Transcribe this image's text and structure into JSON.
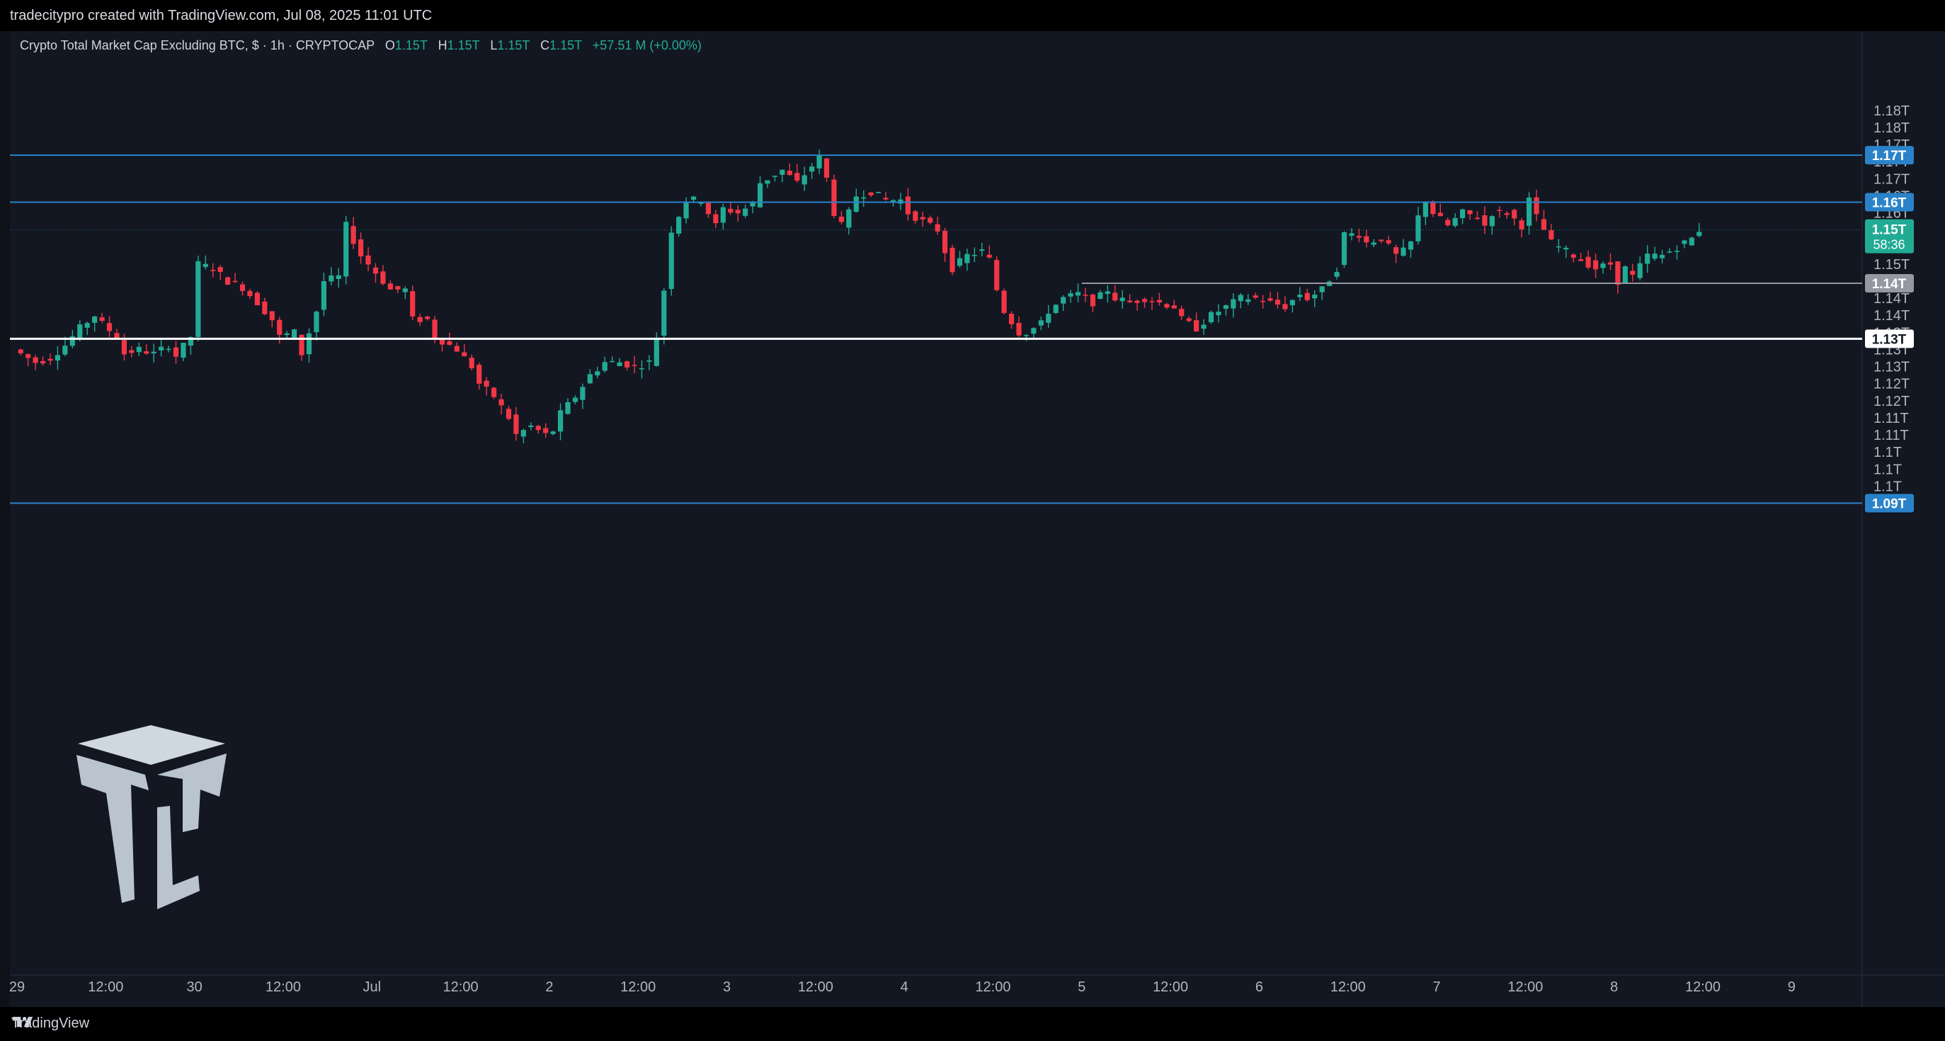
{
  "header": {
    "caption": "tradecitypro created with TradingView.com, Jul 08, 2025 11:01 UTC"
  },
  "legend": {
    "symbol": "Crypto Total Market Cap Excluding BTC, $ · 1h · CRYPTOCAP",
    "o_label": "O",
    "o": "1.15T",
    "h_label": "H",
    "h": "1.15T",
    "l_label": "L",
    "l": "1.15T",
    "c_label": "C",
    "c": "1.15T",
    "change": "+57.51 M (+0.00%)"
  },
  "footer": {
    "brand": "TradingView"
  },
  "colors": {
    "up": "#22ab94",
    "down": "#f23645",
    "level": "#2962ff",
    "bg": "#131722"
  },
  "chart_data": {
    "type": "candlestick",
    "interval": "1h",
    "y_ticks": [
      "1.18T",
      "1.18T",
      "1.17T",
      "1.17T",
      "1.17T",
      "1.16T",
      "1.16T",
      "1.16T",
      "1.15T",
      "1.15T",
      "1.14T",
      "1.14T",
      "1.14T",
      "1.13T",
      "1.13T",
      "1.13T",
      "1.12T",
      "1.12T",
      "1.11T",
      "1.11T",
      "1.1T",
      "1.1T",
      "1.1T"
    ],
    "y_tick_values": [
      1.18,
      1.176,
      1.172,
      1.168,
      1.164,
      1.16,
      1.156,
      1.152,
      1.148,
      1.144,
      1.14,
      1.136,
      1.132,
      1.128,
      1.124,
      1.12,
      1.116,
      1.112,
      1.108,
      1.104,
      1.1,
      1.096,
      1.092
    ],
    "ylim": [
      1.086,
      1.182
    ],
    "x_ticks": [
      "29",
      "12:00",
      "30",
      "12:00",
      "Jul",
      "12:00",
      "2",
      "12:00",
      "3",
      "12:00",
      "4",
      "12:00",
      "5",
      "12:00",
      "6",
      "12:00",
      "7",
      "12:00",
      "8",
      "12:00",
      "9"
    ],
    "x_tick_hours": [
      0,
      12,
      24,
      36,
      48,
      60,
      72,
      84,
      96,
      108,
      120,
      132,
      144,
      156,
      168,
      180,
      192,
      204,
      216,
      228,
      240
    ],
    "horizontal_levels": [
      {
        "value": 1.1695,
        "label": "1.17T",
        "style": "blue"
      },
      {
        "value": 1.1585,
        "label": "1.16T",
        "style": "blue"
      },
      {
        "value": 1.1395,
        "label": "1.14T",
        "style": "gray",
        "from_hour": 144
      },
      {
        "value": 1.1265,
        "label": "1.13T",
        "style": "white"
      },
      {
        "value": 1.088,
        "label": "1.09T",
        "style": "blue"
      }
    ],
    "last_price": {
      "value": 1.152,
      "label": "1.15T",
      "countdown": "58:36"
    },
    "anchors": [
      [
        0,
        1.124
      ],
      [
        3,
        1.121
      ],
      [
        5,
        1.122
      ],
      [
        7,
        1.125
      ],
      [
        9,
        1.129
      ],
      [
        11,
        1.132
      ],
      [
        12,
        1.13
      ],
      [
        14,
        1.127
      ],
      [
        15,
        1.123
      ],
      [
        17,
        1.124
      ],
      [
        19,
        1.123
      ],
      [
        21,
        1.125
      ],
      [
        22,
        1.1225
      ],
      [
        24,
        1.127
      ],
      [
        25,
        1.144
      ],
      [
        27,
        1.143
      ],
      [
        29,
        1.14
      ],
      [
        31,
        1.1385
      ],
      [
        33,
        1.135
      ],
      [
        35,
        1.131
      ],
      [
        36,
        1.127
      ],
      [
        38,
        1.128
      ],
      [
        39,
        1.123
      ],
      [
        41,
        1.133
      ],
      [
        42,
        1.14
      ],
      [
        44,
        1.141
      ],
      [
        45,
        1.153
      ],
      [
        47,
        1.146
      ],
      [
        49,
        1.142
      ],
      [
        51,
        1.138
      ],
      [
        53,
        1.138
      ],
      [
        54,
        1.131
      ],
      [
        56,
        1.131
      ],
      [
        57,
        1.127
      ],
      [
        58,
        1.126
      ],
      [
        60,
        1.124
      ],
      [
        62,
        1.12
      ],
      [
        63,
        1.116
      ],
      [
        65,
        1.113
      ],
      [
        67,
        1.108
      ],
      [
        68,
        1.104
      ],
      [
        70,
        1.106
      ],
      [
        72,
        1.104
      ],
      [
        73,
        1.105
      ],
      [
        74,
        1.109
      ],
      [
        76,
        1.113
      ],
      [
        78,
        1.118
      ],
      [
        80,
        1.121
      ],
      [
        82,
        1.121
      ],
      [
        84,
        1.12
      ],
      [
        86,
        1.121
      ],
      [
        87,
        1.127
      ],
      [
        88,
        1.138
      ],
      [
        89,
        1.152
      ],
      [
        91,
        1.159
      ],
      [
        93,
        1.159
      ],
      [
        95,
        1.153
      ],
      [
        96,
        1.157
      ],
      [
        98,
        1.156
      ],
      [
        100,
        1.158
      ],
      [
        101,
        1.163
      ],
      [
        103,
        1.165
      ],
      [
        104,
        1.166
      ],
      [
        106,
        1.163
      ],
      [
        108,
        1.167
      ],
      [
        109,
        1.169
      ],
      [
        110,
        1.164
      ],
      [
        111,
        1.156
      ],
      [
        112,
        1.153
      ],
      [
        113,
        1.156
      ],
      [
        114,
        1.16
      ],
      [
        116,
        1.161
      ],
      [
        118,
        1.159
      ],
      [
        120,
        1.159
      ],
      [
        121,
        1.156
      ],
      [
        123,
        1.154
      ],
      [
        125,
        1.152
      ],
      [
        126,
        1.147
      ],
      [
        127,
        1.143
      ],
      [
        129,
        1.146
      ],
      [
        131,
        1.147
      ],
      [
        132,
        1.145
      ],
      [
        133,
        1.138
      ],
      [
        134,
        1.133
      ],
      [
        136,
        1.128
      ],
      [
        137,
        1.128
      ],
      [
        139,
        1.13
      ],
      [
        140,
        1.133
      ],
      [
        142,
        1.136
      ],
      [
        144,
        1.137
      ],
      [
        146,
        1.135
      ],
      [
        148,
        1.138
      ],
      [
        149,
        1.136
      ],
      [
        151,
        1.135
      ],
      [
        153,
        1.136
      ],
      [
        155,
        1.135
      ],
      [
        157,
        1.134
      ],
      [
        158,
        1.131
      ],
      [
        160,
        1.129
      ],
      [
        162,
        1.132
      ],
      [
        164,
        1.134
      ],
      [
        166,
        1.136
      ],
      [
        168,
        1.136
      ],
      [
        170,
        1.135
      ],
      [
        172,
        1.134
      ],
      [
        174,
        1.137
      ],
      [
        175,
        1.136
      ],
      [
        177,
        1.138
      ],
      [
        179,
        1.143
      ],
      [
        180,
        1.151
      ],
      [
        182,
        1.151
      ],
      [
        183,
        1.149
      ],
      [
        185,
        1.15
      ],
      [
        187,
        1.146
      ],
      [
        188,
        1.147
      ],
      [
        189,
        1.149
      ],
      [
        190,
        1.155
      ],
      [
        191,
        1.159
      ],
      [
        192,
        1.156
      ],
      [
        194,
        1.153
      ],
      [
        196,
        1.156
      ],
      [
        198,
        1.155
      ],
      [
        199,
        1.153
      ],
      [
        200,
        1.156
      ],
      [
        202,
        1.156
      ],
      [
        204,
        1.153
      ],
      [
        205,
        1.159
      ],
      [
        206,
        1.155
      ],
      [
        208,
        1.149
      ],
      [
        210,
        1.147
      ],
      [
        212,
        1.145
      ],
      [
        214,
        1.143
      ],
      [
        216,
        1.144
      ],
      [
        217,
        1.14
      ],
      [
        218,
        1.143
      ],
      [
        219,
        1.141
      ],
      [
        221,
        1.146
      ],
      [
        223,
        1.146
      ],
      [
        225,
        1.148
      ],
      [
        227,
        1.15
      ],
      [
        228,
        1.152
      ]
    ]
  }
}
